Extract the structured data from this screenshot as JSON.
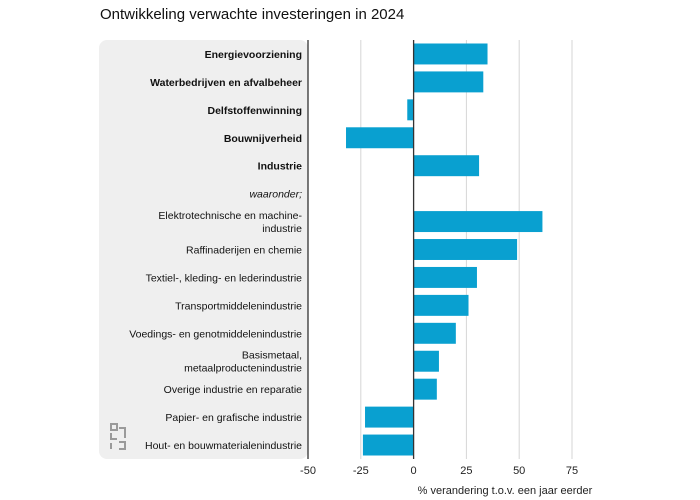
{
  "chart_data": {
    "type": "bar",
    "orientation": "horizontal",
    "title": "Ontwikkeling verwachte investeringen in 2024",
    "xlabel": "% verandering t.o.v. een jaar eerder",
    "ylabel": "",
    "xlim": [
      -50,
      75
    ],
    "xticks": [
      "-50",
      "-25",
      "0",
      "25",
      "50",
      "75"
    ],
    "grid": true,
    "bar_color": "#09a0d0",
    "categories": [
      {
        "label": [
          "Energievoorziening"
        ],
        "bold": true
      },
      {
        "label": [
          "Waterbedrijven en afvalbeheer"
        ],
        "bold": true
      },
      {
        "label": [
          "Delfstoffenwinning"
        ],
        "bold": true
      },
      {
        "label": [
          "Bouwnijverheid"
        ],
        "bold": true
      },
      {
        "label": [
          "Industrie"
        ],
        "bold": true
      },
      {
        "label": [
          "waaronder;"
        ],
        "italic": true
      },
      {
        "label": [
          "Elektrotechnische en machine-",
          "industrie"
        ]
      },
      {
        "label": [
          "Raffinaderijen en chemie"
        ]
      },
      {
        "label": [
          "Textiel-, kleding- en lederindustrie"
        ]
      },
      {
        "label": [
          "Transportmiddelenindustrie"
        ]
      },
      {
        "label": [
          "Voedings- en genotmiddelenindustrie"
        ]
      },
      {
        "label": [
          "Basismetaal,",
          "metaalproductenindustrie"
        ]
      },
      {
        "label": [
          "Overige industrie en reparatie"
        ]
      },
      {
        "label": [
          "Papier- en grafische industrie"
        ]
      },
      {
        "label": [
          "Hout- en bouwmaterialenindustrie"
        ]
      }
    ],
    "values": [
      35,
      33,
      -3,
      -32,
      31,
      null,
      61,
      49,
      30,
      26,
      20,
      12,
      11,
      -23,
      -24
    ]
  }
}
